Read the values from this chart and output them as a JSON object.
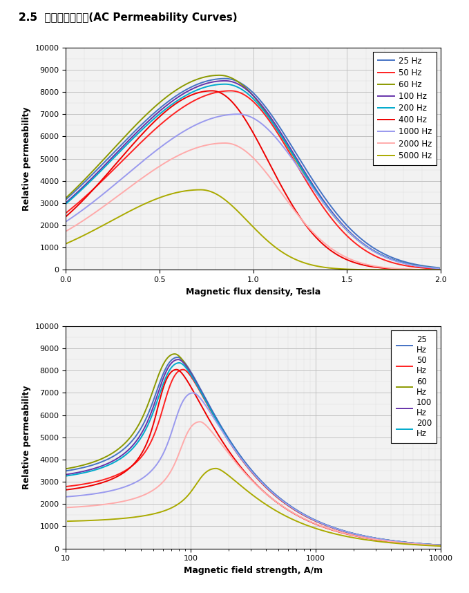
{
  "title_plain": "2.5  ",
  "title_chinese": "交流導磁率曲線",
  "title_english": "(AC Permeability Curves)",
  "plot1": {
    "xlabel": "Magnetic flux density, Tesla",
    "ylabel": "Relative permeability",
    "xlim": [
      0,
      2
    ],
    "ylim": [
      0,
      10000
    ],
    "yticks": [
      0,
      1000,
      2000,
      3000,
      4000,
      5000,
      6000,
      7000,
      8000,
      9000,
      10000
    ],
    "xticks": [
      0,
      0.5,
      1.0,
      1.5,
      2.0
    ]
  },
  "plot2": {
    "xlabel": "Magnetic field strength, A/m",
    "ylabel": "Relative permeability",
    "ylim": [
      0,
      10000
    ],
    "yticks": [
      0,
      1000,
      2000,
      3000,
      4000,
      5000,
      6000,
      7000,
      8000,
      9000,
      10000
    ],
    "xticks_log": [
      10,
      100,
      1000,
      10000
    ]
  },
  "freq_labels_p1": [
    "25 Hz",
    "50 Hz",
    "60 Hz",
    "100 Hz",
    "200 Hz",
    "400 Hz",
    "1000 Hz",
    "2000 Hz",
    "5000 Hz"
  ],
  "freq_labels_p2": [
    "25\nHz",
    "50\nHz",
    "60\nHz",
    "100\nHz",
    "200\nHz"
  ],
  "colors": [
    "#4472C4",
    "#FF2020",
    "#8B9900",
    "#6633AA",
    "#00AACC",
    "#EE0000",
    "#9999EE",
    "#FFAAAA",
    "#AAAA00"
  ],
  "curve_params_B": [
    {
      "mu_max": 8600,
      "B_peak": 0.85,
      "sigma_l": 0.6,
      "sigma_r": 0.38
    },
    {
      "mu_max": 8050,
      "B_peak": 0.88,
      "sigma_l": 0.58,
      "sigma_r": 0.34
    },
    {
      "mu_max": 8750,
      "B_peak": 0.82,
      "sigma_l": 0.58,
      "sigma_r": 0.38
    },
    {
      "mu_max": 8500,
      "B_peak": 0.85,
      "sigma_l": 0.59,
      "sigma_r": 0.37
    },
    {
      "mu_max": 8350,
      "B_peak": 0.85,
      "sigma_l": 0.59,
      "sigma_r": 0.37
    },
    {
      "mu_max": 8050,
      "B_peak": 0.78,
      "sigma_l": 0.5,
      "sigma_r": 0.3
    },
    {
      "mu_max": 7000,
      "B_peak": 0.92,
      "sigma_l": 0.6,
      "sigma_r": 0.35
    },
    {
      "mu_max": 5700,
      "B_peak": 0.85,
      "sigma_l": 0.55,
      "sigma_r": 0.3
    },
    {
      "mu_max": 3600,
      "B_peak": 0.72,
      "sigma_l": 0.48,
      "sigma_r": 0.25
    }
  ],
  "background_color": "#F2F2F2",
  "grid_color": "#BBBBBB",
  "grid_color_minor": "#DDDDDD"
}
